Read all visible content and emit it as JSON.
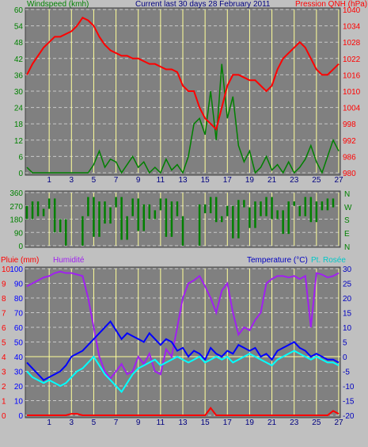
{
  "header": {
    "left_title": "Windspeed (kmh)",
    "center_title": "Current last 30 days 28 February 2011",
    "right_title": "Pression QNH (hPa)"
  },
  "mid": {
    "dir_labels": [
      "N",
      "W",
      "S",
      "E",
      "N"
    ]
  },
  "bottom": {
    "rain_title": "Pluie (mm)",
    "hum_title": "Humidité",
    "temp_title": "Temperature (°C)",
    "dew_title": "Pt. Rosée"
  },
  "colors": {
    "background": "#808080",
    "frame": "#c0c0c0",
    "grid": "#c8c8c8",
    "day_line": "#ffff99",
    "wind": "#008000",
    "pressure": "#ff0000",
    "rain": "#ff0000",
    "humidity": "#a020f0",
    "temperature": "#0000ff",
    "dewpoint": "#00ffff",
    "left_axis_text": "#008000",
    "right_axis_text": "#ff0000",
    "hum_axis_text": "#0000ff",
    "temp_axis_text": "#0000c0"
  },
  "chart_data": [
    {
      "type": "line",
      "x_ticks": [
        "1",
        "3",
        "5",
        "7",
        "9",
        "11",
        "13",
        "15",
        "17",
        "19",
        "21",
        "23",
        "25",
        "27"
      ],
      "x": [
        0,
        1,
        2,
        3,
        4,
        5,
        6,
        7,
        8,
        9,
        10,
        11,
        12,
        13,
        14,
        15,
        16,
        17,
        18,
        19,
        20,
        21,
        22,
        23,
        24,
        25,
        26,
        27,
        28,
        29,
        30,
        31,
        32,
        33,
        34,
        35,
        36,
        37,
        38,
        39,
        40,
        41,
        42,
        43,
        44,
        45,
        46,
        47,
        48,
        49,
        50,
        51,
        52,
        53,
        54,
        55,
        56
      ],
      "ylim_left": [
        0,
        60
      ],
      "yticks_left": [
        "0",
        "6",
        "12",
        "18",
        "24",
        "30",
        "36",
        "42",
        "48",
        "54",
        "60"
      ],
      "ylim_right": [
        980,
        1040
      ],
      "yticks_right": [
        "980",
        "986",
        "992",
        "998",
        "1004",
        "1010",
        "1016",
        "1022",
        "1028",
        "1034",
        "1040"
      ],
      "series": [
        {
          "axis": "left",
          "values": [
            2,
            0,
            0,
            0,
            0,
            0,
            0,
            0,
            0,
            0,
            0,
            0,
            3,
            8,
            2,
            5,
            4,
            0,
            3,
            6,
            2,
            4,
            0,
            2,
            0,
            5,
            1,
            3,
            0,
            6,
            18,
            20,
            14,
            30,
            12,
            40,
            20,
            28,
            10,
            4,
            8,
            0,
            2,
            6,
            1,
            3,
            0,
            4,
            0,
            2,
            5,
            10,
            4,
            0,
            6,
            12,
            8
          ]
        },
        {
          "axis": "right",
          "values": [
            1016,
            1020,
            1023,
            1026,
            1028,
            1030,
            1030,
            1031,
            1032,
            1034,
            1037,
            1036,
            1034,
            1030,
            1027,
            1025,
            1024,
            1023,
            1023,
            1022,
            1022,
            1021,
            1020,
            1020,
            1019,
            1018,
            1018,
            1017,
            1012,
            1010,
            1010,
            1004,
            1000,
            998,
            996,
            1004,
            1012,
            1016,
            1016,
            1015,
            1014,
            1014,
            1012,
            1010,
            1012,
            1018,
            1022,
            1024,
            1026,
            1028,
            1026,
            1022,
            1018,
            1016,
            1016,
            1018,
            1020
          ]
        }
      ]
    },
    {
      "type": "scatter",
      "yticks": [
        "0",
        "90",
        "180",
        "270",
        "360"
      ],
      "ylim": [
        0,
        360
      ],
      "x_ticks": [
        "1",
        "3",
        "5",
        "7",
        "9",
        "11",
        "13",
        "15",
        "17",
        "19",
        "21",
        "23",
        "25",
        "27"
      ],
      "x": [
        0,
        1,
        2,
        3,
        4,
        5,
        6,
        7,
        8,
        9,
        10,
        11,
        12,
        13,
        14,
        15,
        16,
        17,
        18,
        19,
        20,
        21,
        22,
        23,
        24,
        25,
        26,
        27,
        28,
        29,
        30,
        31,
        32,
        33,
        34,
        35,
        36,
        37,
        38,
        39,
        40,
        41,
        42,
        43,
        44,
        45,
        46,
        47,
        48,
        49,
        50,
        51,
        52,
        53,
        54,
        55,
        56
      ],
      "series": [
        {
          "values": [
            270,
            180,
            300,
            200,
            250,
            320,
            90,
            180,
            0,
            0,
            0,
            200,
            330,
            60,
            300,
            150,
            260,
            330,
            40,
            200,
            320,
            100,
            280,
            180,
            240,
            320,
            60,
            300,
            200,
            0,
            0,
            0,
            280,
            220,
            330,
            160,
            200,
            270,
            50,
            310,
            260,
            120,
            300,
            200,
            330,
            180,
            240,
            80,
            300,
            270,
            200,
            330,
            160,
            300,
            240,
            320,
            260
          ]
        }
      ]
    },
    {
      "type": "line",
      "x_ticks": [
        "1",
        "3",
        "5",
        "7",
        "9",
        "11",
        "13",
        "15",
        "17",
        "19",
        "21",
        "23",
        "25",
        "27"
      ],
      "x": [
        0,
        1,
        2,
        3,
        4,
        5,
        6,
        7,
        8,
        9,
        10,
        11,
        12,
        13,
        14,
        15,
        16,
        17,
        18,
        19,
        20,
        21,
        22,
        23,
        24,
        25,
        26,
        27,
        28,
        29,
        30,
        31,
        32,
        33,
        34,
        35,
        36,
        37,
        38,
        39,
        40,
        41,
        42,
        43,
        44,
        45,
        46,
        47,
        48,
        49,
        50,
        51,
        52,
        53,
        54,
        55,
        56
      ],
      "ylim_left": [
        0,
        100
      ],
      "yticks_left": [
        "0",
        "10",
        "20",
        "30",
        "40",
        "50",
        "60",
        "70",
        "80",
        "90",
        "100"
      ],
      "ylim_right": [
        -20,
        30
      ],
      "yticks_right": [
        "-20",
        "-15",
        "-10",
        "-5",
        "0",
        "5",
        "10",
        "15",
        "20",
        "25",
        "30"
      ],
      "series": [
        {
          "axis": "left",
          "values": [
            88,
            90,
            92,
            94,
            95,
            97,
            98,
            97,
            97,
            96,
            95,
            80,
            60,
            40,
            30,
            25,
            30,
            35,
            28,
            30,
            40,
            35,
            42,
            30,
            28,
            45,
            40,
            60,
            80,
            90,
            92,
            95,
            88,
            80,
            70,
            85,
            90,
            70,
            55,
            60,
            58,
            65,
            70,
            90,
            93,
            95,
            95,
            94,
            95,
            93,
            95,
            60,
            97,
            96,
            94,
            95,
            97
          ]
        },
        {
          "axis": "right",
          "values": [
            -2,
            -4,
            -6,
            -8,
            -7,
            -6,
            -5,
            -3,
            0,
            1,
            2,
            4,
            6,
            8,
            10,
            12,
            9,
            6,
            8,
            7,
            6,
            5,
            8,
            6,
            4,
            6,
            5,
            2,
            3,
            0,
            2,
            1,
            -1,
            3,
            1,
            0,
            2,
            1,
            4,
            3,
            2,
            3,
            0,
            1,
            -1,
            2,
            3,
            4,
            5,
            3,
            2,
            0,
            1,
            0,
            -1,
            -1,
            -2
          ]
        },
        {
          "axis": "right",
          "values": [
            -5,
            -7,
            -8,
            -9,
            -8,
            -9,
            -10,
            -9,
            -7,
            -5,
            -4,
            -2,
            0,
            -3,
            -6,
            -8,
            -10,
            -12,
            -9,
            -6,
            -4,
            -3,
            -2,
            -1,
            -3,
            -2,
            -1,
            0,
            -1,
            -2,
            -1,
            0,
            -2,
            -1,
            0,
            -1,
            0,
            -2,
            -1,
            0,
            1,
            0,
            -1,
            -2,
            -3,
            -1,
            0,
            1,
            2,
            1,
            0,
            -1,
            0,
            -1,
            -2,
            -2,
            -3
          ]
        },
        {
          "axis": "left",
          "values": [
            0,
            0,
            0,
            0,
            0,
            0,
            0,
            0,
            1,
            1,
            0,
            0,
            0,
            0,
            0,
            0,
            0,
            0,
            0,
            0,
            0,
            0,
            0,
            0,
            0,
            0,
            0,
            0,
            0,
            0,
            0,
            0,
            0,
            5,
            0,
            0,
            0,
            0,
            0,
            0,
            0,
            0,
            0,
            0,
            0,
            0,
            0,
            0,
            0,
            0,
            0,
            0,
            0,
            0,
            0,
            3,
            1
          ]
        }
      ]
    }
  ]
}
